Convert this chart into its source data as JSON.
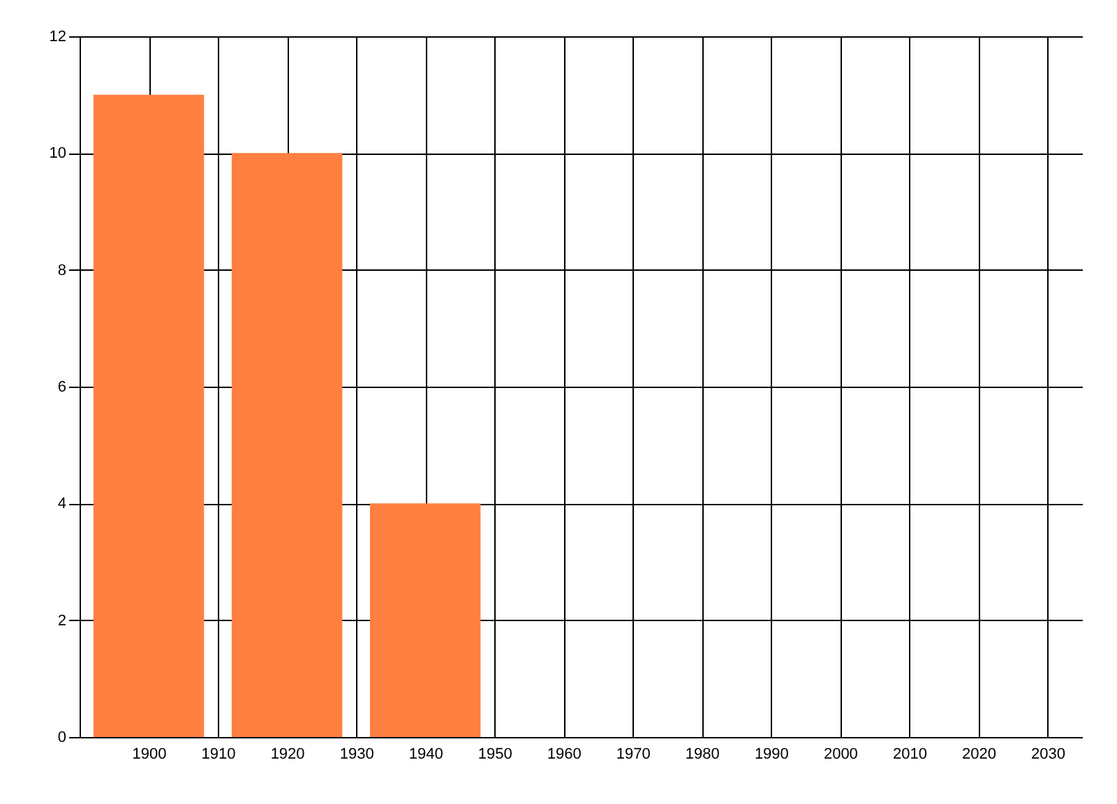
{
  "chart_data": {
    "type": "bar",
    "x": [
      1900,
      1920,
      1940
    ],
    "values": [
      11,
      10,
      4
    ],
    "color": "#ff7f40",
    "xlim": [
      1890,
      2035
    ],
    "xticks": [
      1900,
      1910,
      1920,
      1930,
      1940,
      1950,
      1960,
      1970,
      1980,
      1990,
      2000,
      2010,
      2020,
      2030
    ],
    "ylim": [
      0,
      12
    ],
    "yticks": [
      0,
      2,
      4,
      6,
      8,
      10,
      12
    ],
    "grid": true
  }
}
